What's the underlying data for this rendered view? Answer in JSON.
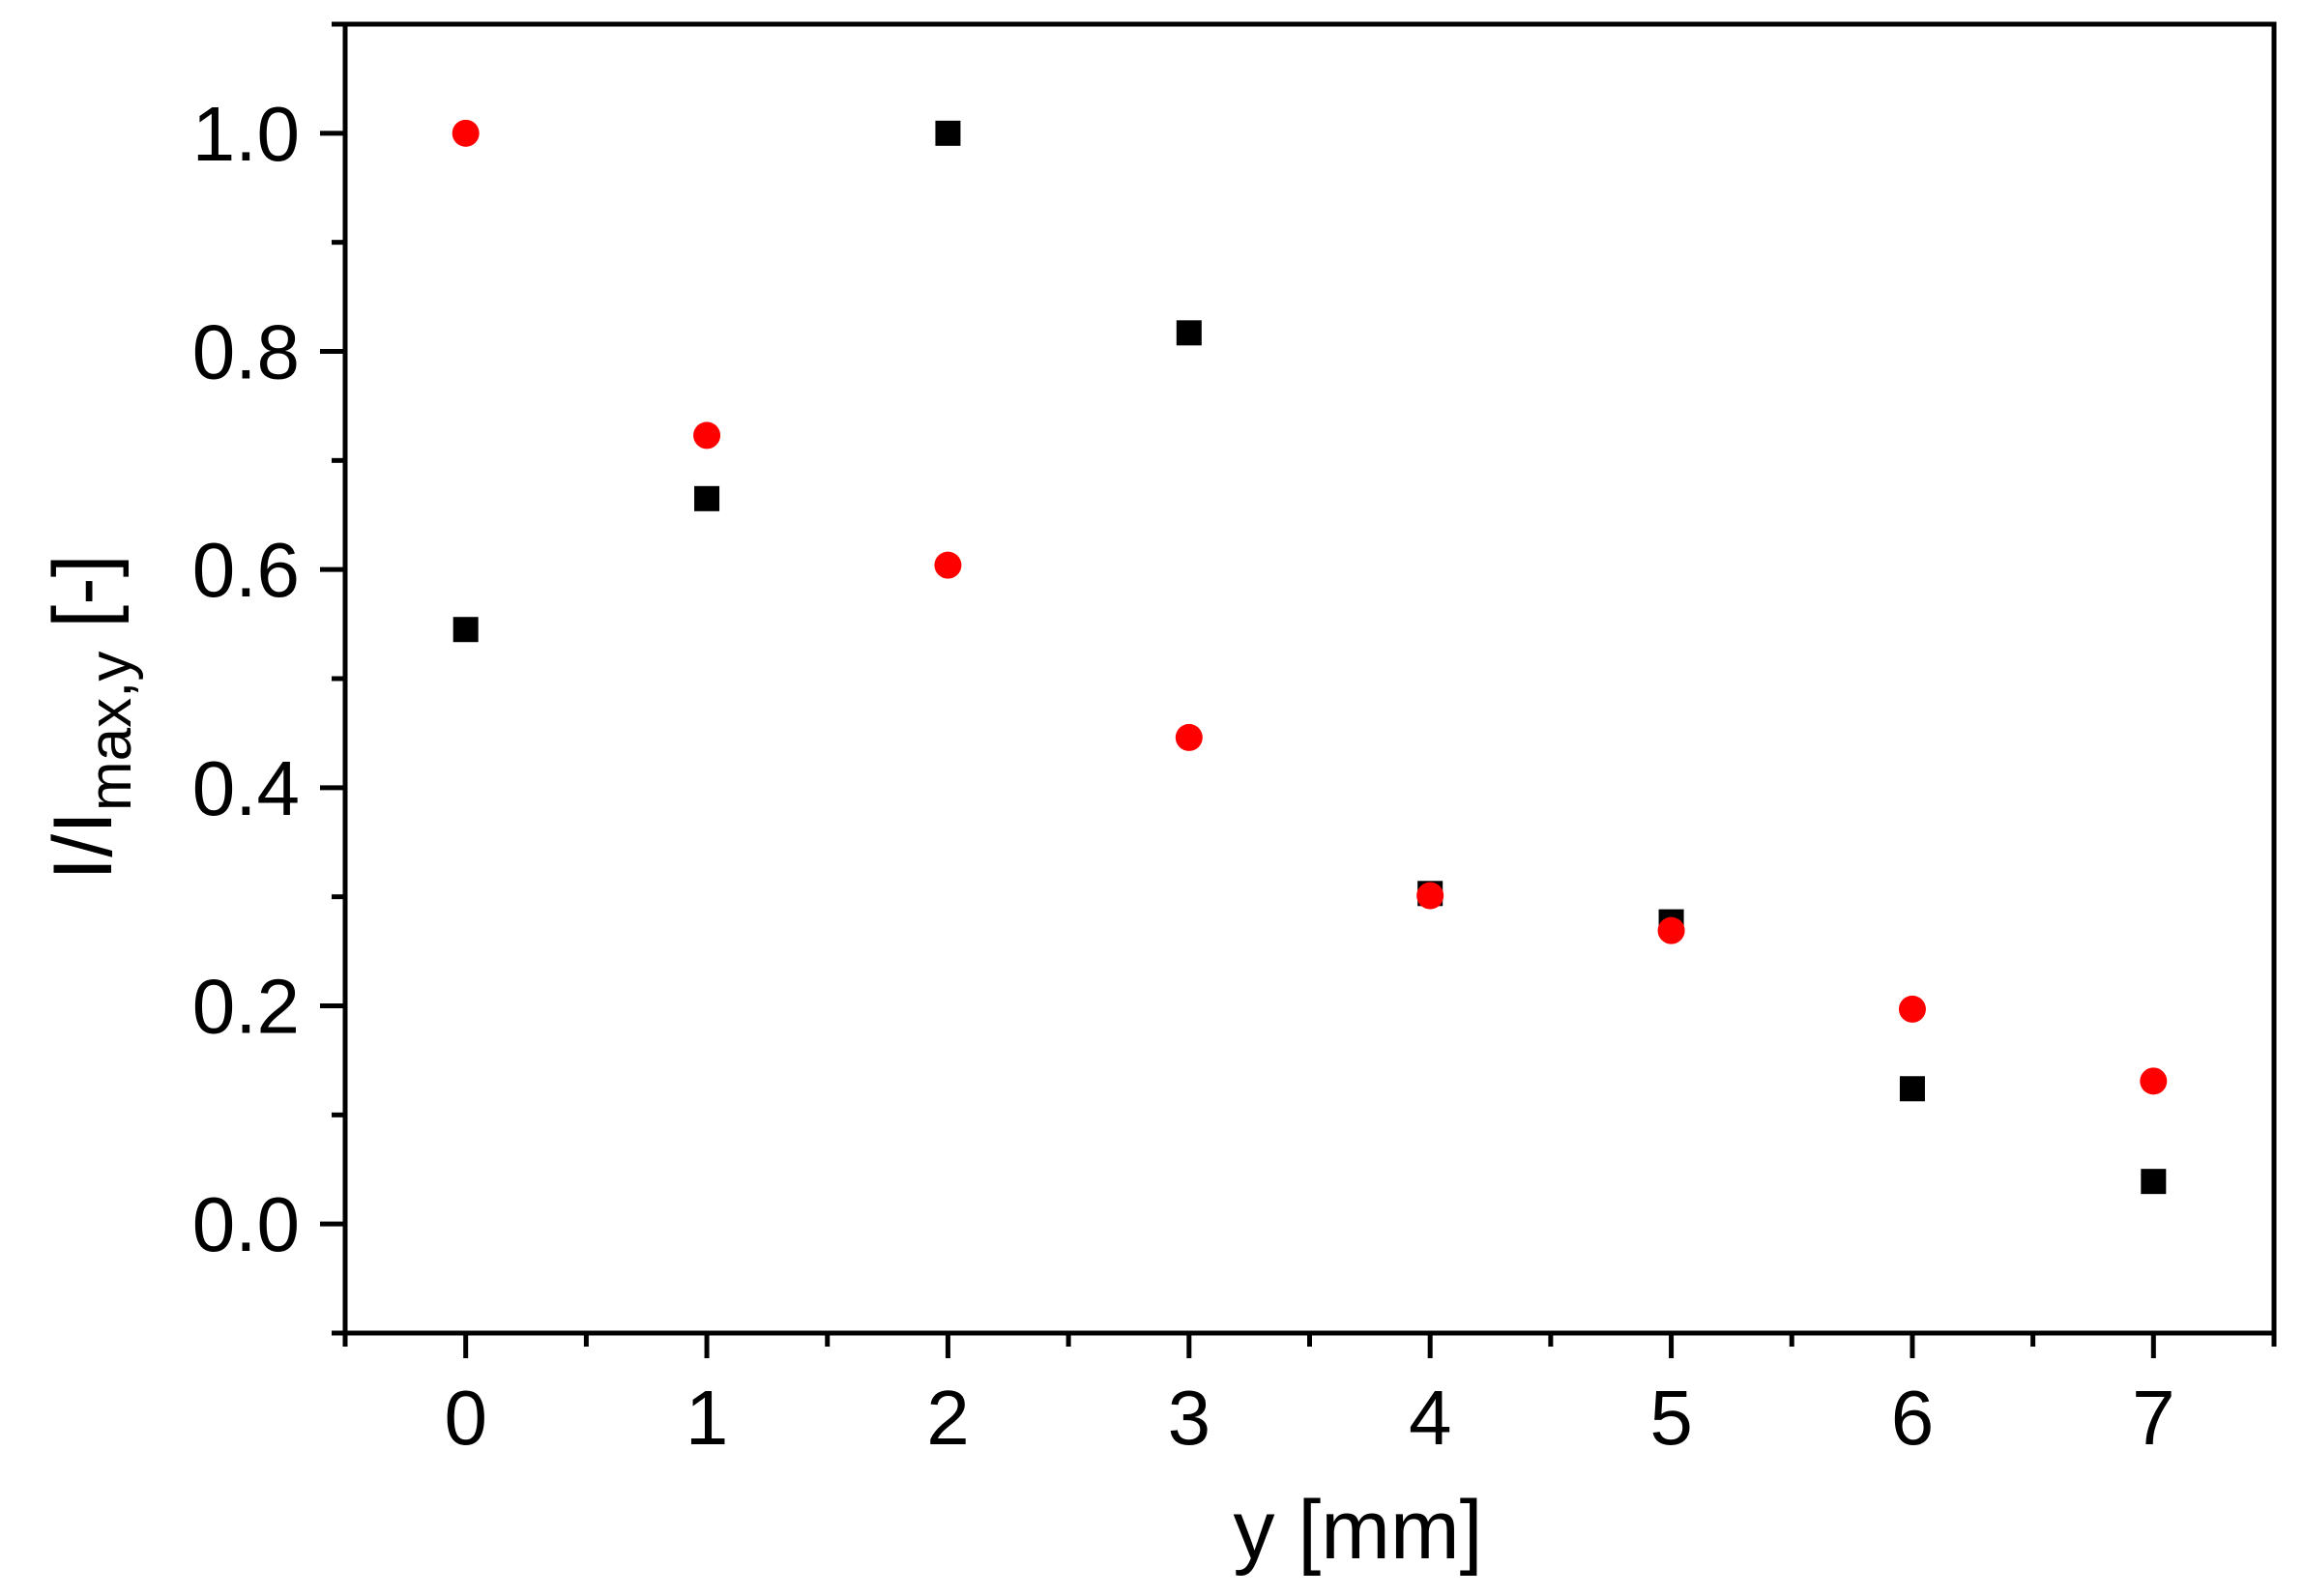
{
  "chart_data": {
    "type": "scatter",
    "xlabel": "y [mm]",
    "ylabel": {
      "main": "I/I",
      "subscript": "max,y",
      "suffix": " [-]"
    },
    "xlim": [
      -0.5,
      7.5
    ],
    "ylim": [
      -0.1,
      1.1
    ],
    "xticks": [
      0,
      1,
      2,
      3,
      4,
      5,
      6,
      7
    ],
    "xtick_labels": [
      "0",
      "1",
      "2",
      "3",
      "4",
      "5",
      "6",
      "7"
    ],
    "xminor_ticks": [
      -0.5,
      0.5,
      1.5,
      2.5,
      3.5,
      4.5,
      5.5,
      6.5,
      7.5
    ],
    "yticks": [
      0.0,
      0.2,
      0.4,
      0.6,
      0.8,
      1.0
    ],
    "ytick_labels": [
      "0.0",
      "0.2",
      "0.4",
      "0.6",
      "0.8",
      "1.0"
    ],
    "yminor_ticks": [
      -0.1,
      0.1,
      0.3,
      0.5,
      0.7,
      0.9,
      1.1
    ],
    "grid": false,
    "series": [
      {
        "marker": "square",
        "color": "#000000",
        "x": [
          0,
          1,
          2,
          3,
          4,
          5,
          6,
          7
        ],
        "y": [
          0.545,
          0.665,
          1.0,
          0.817,
          0.303,
          0.277,
          0.124,
          0.039
        ]
      },
      {
        "marker": "circle",
        "color": "#ff0000",
        "x": [
          0,
          1,
          2,
          3,
          4,
          5,
          6,
          7
        ],
        "y": [
          1.0,
          0.723,
          0.604,
          0.446,
          0.301,
          0.269,
          0.197,
          0.131
        ]
      }
    ]
  }
}
